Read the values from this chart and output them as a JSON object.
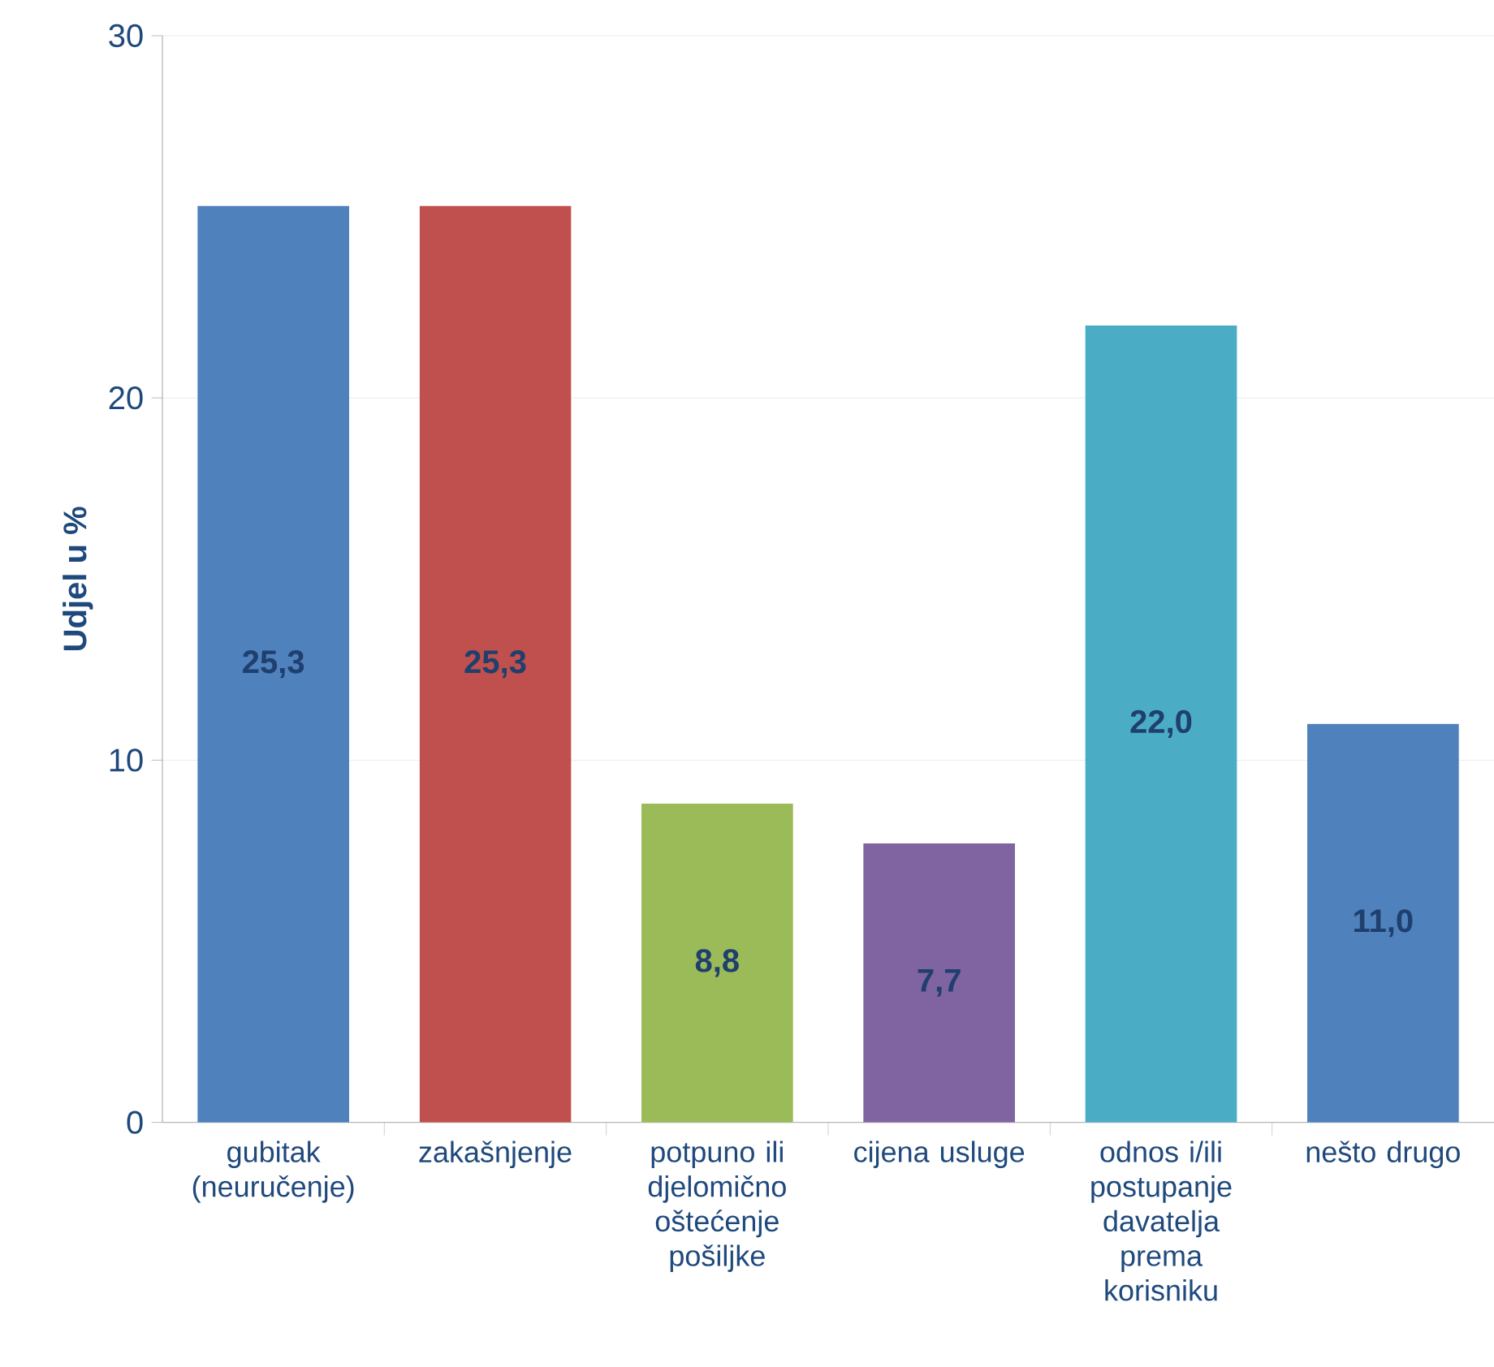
{
  "chart_data": {
    "type": "bar",
    "ylabel": "Udjel u %",
    "categories": [
      "gubitak (neuručenje)",
      "zakašnjenje",
      "potpuno ili djelomično oštećenje pošiljke",
      "cijena usluge",
      "odnos i/ili postupanje davatelja prema korisniku",
      "nešto drugo"
    ],
    "values": [
      25.3,
      25.3,
      8.8,
      7.7,
      22.0,
      11.0
    ],
    "colors": [
      "#4f81bd",
      "#c0504d",
      "#9bbb59",
      "#8064a2",
      "#4bacc6",
      "#4f81bd"
    ],
    "value_labels": [
      "25,3",
      "25,3",
      "8,8",
      "7,7",
      "22,0",
      "11,0"
    ],
    "ylim": [
      0,
      30
    ],
    "yticks": [
      0,
      10,
      20,
      30
    ],
    "grid": "y"
  }
}
